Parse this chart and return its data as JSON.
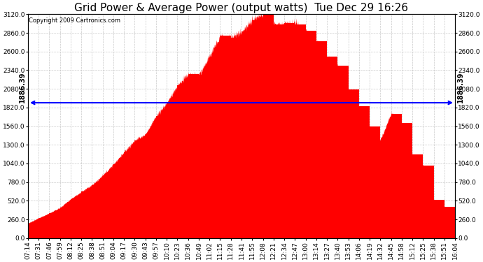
{
  "title": "Grid Power & Average Power (output watts)  Tue Dec 29 16:26",
  "copyright": "Copyright 2009 Cartronics.com",
  "avg_line_y": 1886.39,
  "avg_label": "1886.39",
  "ymin": 0.0,
  "ymax": 3120.0,
  "yticks": [
    0.0,
    260.0,
    520.0,
    780.0,
    1040.0,
    1300.0,
    1560.0,
    1820.0,
    2080.0,
    2340.0,
    2600.0,
    2860.0,
    3120.0
  ],
  "xtick_labels": [
    "07:14",
    "07:31",
    "07:46",
    "07:59",
    "08:12",
    "08:25",
    "08:38",
    "08:51",
    "09:04",
    "09:17",
    "09:30",
    "09:43",
    "09:57",
    "10:10",
    "10:23",
    "10:36",
    "10:49",
    "11:02",
    "11:15",
    "11:28",
    "11:41",
    "11:55",
    "12:08",
    "12:21",
    "12:34",
    "12:47",
    "13:00",
    "13:14",
    "13:27",
    "13:40",
    "13:53",
    "14:06",
    "14:19",
    "14:32",
    "14:45",
    "14:58",
    "15:12",
    "15:25",
    "15:38",
    "15:51",
    "16:04"
  ],
  "fill_color": "#ff0000",
  "line_color": "#0000ff",
  "bg_color": "#ffffff",
  "grid_color": "#bbbbbb",
  "title_fontsize": 11,
  "tick_fontsize": 6.5,
  "copyright_fontsize": 6
}
